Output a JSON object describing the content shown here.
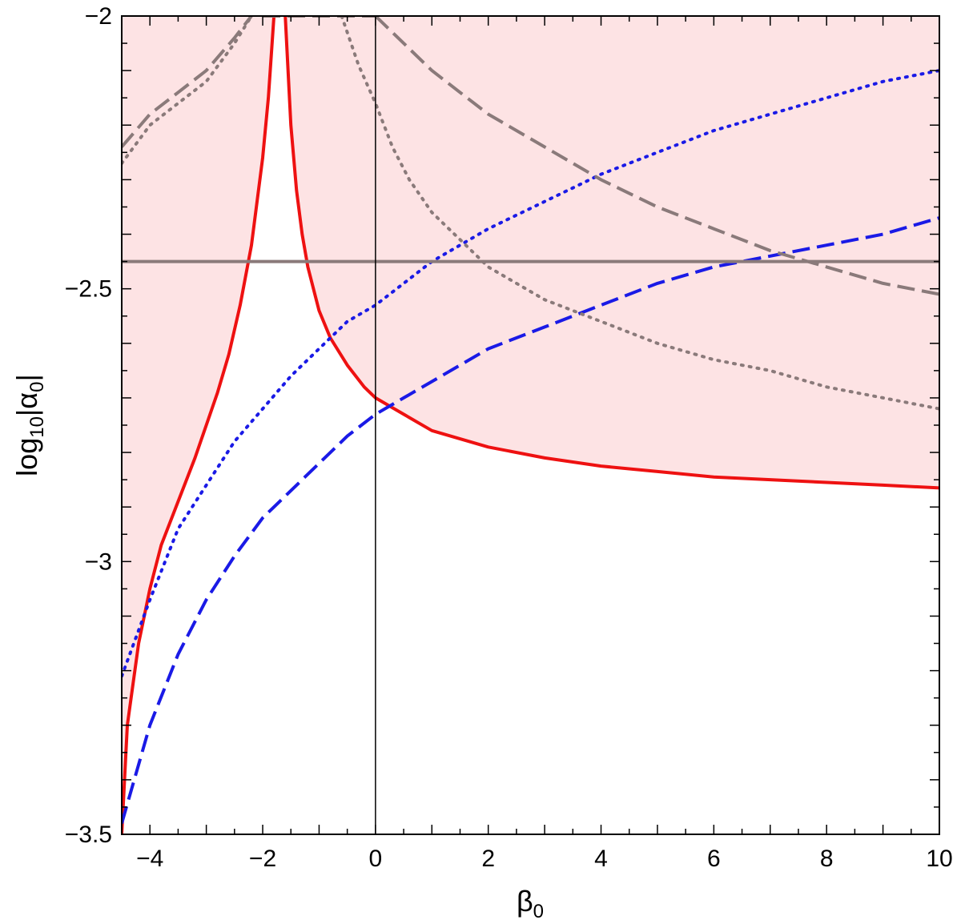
{
  "chart_data": {
    "type": "line",
    "title": "",
    "xlabel": "β",
    "xlabel_sub": "0",
    "ylabel_pre": "log",
    "ylabel_sub1": "10",
    "ylabel_mid": "|α",
    "ylabel_sub2": "0",
    "ylabel_post": "|",
    "xlim": [
      -4.5,
      10
    ],
    "ylim": [
      -3.5,
      -2
    ],
    "xticks": [
      -4,
      -2,
      0,
      2,
      4,
      6,
      8,
      10
    ],
    "xtick_labels": [
      "−4",
      "−2",
      "0",
      "2",
      "4",
      "6",
      "8",
      "10"
    ],
    "yticks": [
      -3.5,
      -3,
      -2.5,
      -2
    ],
    "ytick_labels": [
      "−3.5",
      "−3",
      "−2.5",
      "−2"
    ],
    "grid": false,
    "shaded_region": {
      "color": "#fde3e4",
      "description_boundary": "red solid curve (excluded region above it)"
    },
    "colors": {
      "red": "#ee1111",
      "blue": "#1a1ae6",
      "gray": "#8a7a7a"
    },
    "series": [
      {
        "style": "solid",
        "color": "#ee1111",
        "x": [
          -4.5,
          -4.4,
          -4.2,
          -4.0,
          -3.8,
          -3.5,
          -3.2,
          -3.0,
          -2.8,
          -2.6,
          -2.4,
          -2.2,
          -2.0,
          -1.9,
          -1.8,
          -1.75
        ],
        "y": [
          -3.5,
          -3.3,
          -3.15,
          -3.05,
          -2.97,
          -2.89,
          -2.81,
          -2.75,
          -2.69,
          -2.62,
          -2.53,
          -2.42,
          -2.26,
          -2.15,
          -2.0,
          -2.0
        ]
      },
      {
        "style": "solid",
        "color": "#ee1111",
        "x": [
          -1.6,
          -1.5,
          -1.4,
          -1.3,
          -1.2,
          -1.0,
          -0.8,
          -0.5,
          -0.2,
          0.0,
          0.5,
          1.0,
          2.0,
          3.0,
          4.0,
          5.0,
          6.0,
          7.0,
          8.0,
          9.0,
          10.0
        ],
        "y": [
          -2.0,
          -2.2,
          -2.32,
          -2.4,
          -2.46,
          -2.54,
          -2.59,
          -2.64,
          -2.68,
          -2.7,
          -2.73,
          -2.76,
          -2.79,
          -2.81,
          -2.825,
          -2.835,
          -2.845,
          -2.85,
          -2.855,
          -2.86,
          -2.865
        ]
      },
      {
        "style": "dotted",
        "color": "#1a1ae6",
        "x": [
          -4.5,
          -4.0,
          -3.5,
          -3.0,
          -2.5,
          -2.0,
          -1.5,
          -1.0,
          -0.5,
          0.0,
          0.5,
          1.0,
          2.0,
          3.0,
          4.0,
          5.0,
          6.0,
          7.0,
          8.0,
          9.0,
          10.0
        ],
        "y": [
          -3.21,
          -3.07,
          -2.94,
          -2.86,
          -2.78,
          -2.72,
          -2.66,
          -2.61,
          -2.56,
          -2.53,
          -2.49,
          -2.45,
          -2.39,
          -2.34,
          -2.29,
          -2.25,
          -2.21,
          -2.18,
          -2.15,
          -2.12,
          -2.1
        ]
      },
      {
        "style": "dashed",
        "color": "#1a1ae6",
        "x": [
          -4.5,
          -4.0,
          -3.5,
          -3.0,
          -2.5,
          -2.0,
          -1.5,
          -1.0,
          -0.5,
          0.0,
          0.5,
          1.0,
          2.0,
          3.0,
          4.0,
          5.0,
          6.0,
          7.0,
          8.0,
          9.0,
          10.0
        ],
        "y": [
          -3.48,
          -3.3,
          -3.17,
          -3.07,
          -2.99,
          -2.92,
          -2.87,
          -2.82,
          -2.77,
          -2.73,
          -2.7,
          -2.67,
          -2.61,
          -2.57,
          -2.53,
          -2.49,
          -2.46,
          -2.44,
          -2.42,
          -2.4,
          -2.37
        ]
      },
      {
        "style": "solid",
        "color": "#8a7a7a",
        "x": [
          -4.5,
          10.0
        ],
        "y": [
          -2.45,
          -2.45
        ]
      },
      {
        "style": "dashed",
        "color": "#8a7a7a",
        "x": [
          -4.5,
          -4.0,
          -3.5,
          -3.0,
          -2.5,
          -2.2
        ],
        "y": [
          -2.24,
          -2.18,
          -2.14,
          -2.1,
          -2.04,
          -2.0
        ]
      },
      {
        "style": "dotted",
        "color": "#8a7a7a",
        "x": [
          -4.5,
          -4.0,
          -3.5,
          -3.0,
          -2.5,
          -2.2
        ],
        "y": [
          -2.27,
          -2.2,
          -2.16,
          -2.12,
          -2.05,
          -2.0
        ]
      },
      {
        "style": "dashed",
        "color": "#8a7a7a",
        "x": [
          -2.0,
          -1.0,
          0.0
        ],
        "y": [
          -2.0,
          -2.0,
          -2.0
        ]
      },
      {
        "style": "dashed",
        "color": "#8a7a7a",
        "x": [
          0.0,
          0.5,
          1.0,
          1.5,
          2.0,
          3.0,
          4.0,
          5.0,
          6.0,
          7.0,
          8.0,
          9.0,
          10.0
        ],
        "y": [
          -2.0,
          -2.05,
          -2.1,
          -2.14,
          -2.18,
          -2.24,
          -2.3,
          -2.35,
          -2.39,
          -2.43,
          -2.46,
          -2.49,
          -2.51
        ]
      },
      {
        "style": "dotted",
        "color": "#8a7a7a",
        "x": [
          -0.6,
          -0.3,
          0.0,
          0.3,
          0.6,
          1.0,
          1.5,
          2.0,
          3.0,
          4.0,
          5.0,
          6.0,
          7.0,
          8.0,
          9.0,
          10.0
        ],
        "y": [
          -2.0,
          -2.09,
          -2.16,
          -2.24,
          -2.3,
          -2.36,
          -2.41,
          -2.46,
          -2.52,
          -2.56,
          -2.6,
          -2.63,
          -2.65,
          -2.68,
          -2.7,
          -2.72
        ]
      }
    ]
  }
}
